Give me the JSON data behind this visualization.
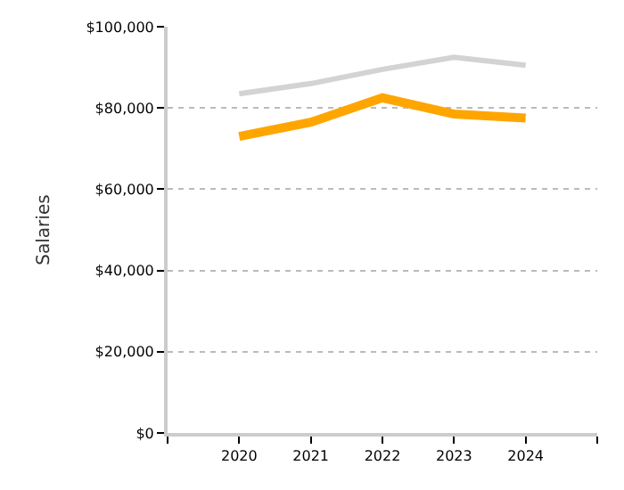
{
  "chart_data": {
    "type": "line",
    "ylabel": "Salaries",
    "x": [
      2020,
      2021,
      2022,
      2023,
      2024
    ],
    "series": [
      {
        "color": "#d3d3d3",
        "values": [
          83500,
          86000,
          89500,
          92500,
          90500
        ]
      },
      {
        "color": "#ffa500",
        "values": [
          73000,
          76500,
          82500,
          78500,
          77500
        ]
      }
    ],
    "xlim": [
      2019,
      2025
    ],
    "xticks": [
      {
        "value": 2019,
        "label": null
      },
      2020,
      2021,
      2022,
      2023,
      2024,
      {
        "value": 2025,
        "label": null
      }
    ],
    "ylim": [
      0,
      100000
    ],
    "yticks": [
      {
        "value": 0,
        "label": "$0"
      },
      {
        "value": 20000,
        "label": "$20,000"
      },
      {
        "value": 40000,
        "label": "$40,000"
      },
      {
        "value": 60000,
        "label": "$60,000"
      },
      {
        "value": 80000,
        "label": "$80,000"
      },
      {
        "value": 100000,
        "label": "$100,000"
      }
    ],
    "grid": "y",
    "marker": "none",
    "line_style": "solid"
  }
}
